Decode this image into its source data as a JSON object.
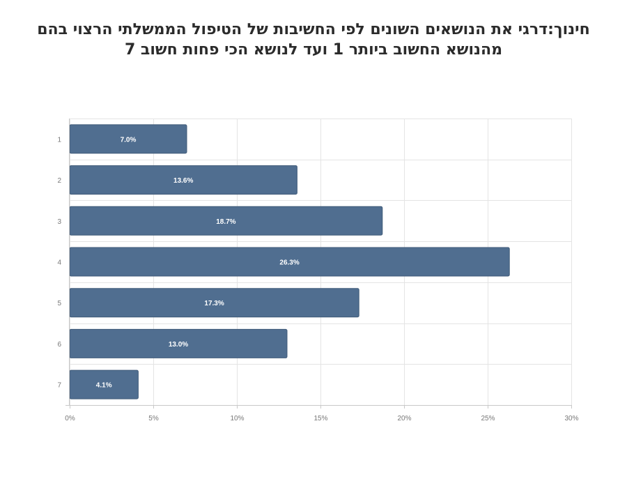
{
  "chart_data": {
    "type": "bar",
    "orientation": "horizontal",
    "title_lines": [
      "חינוך:דרגי את הנושאים השונים לפי החשיבות של הטיפול הממשלתי הרצוי בהם",
      "מהנושא החשוב ביותר 1 ועד לנושא הכי פחות חשוב 7"
    ],
    "categories": [
      "1",
      "2",
      "3",
      "4",
      "5",
      "6",
      "7"
    ],
    "values": [
      7.0,
      13.6,
      18.7,
      26.3,
      17.3,
      13.0,
      4.1
    ],
    "value_labels": [
      "7.0%",
      "13.6%",
      "18.7%",
      "26.3%",
      "17.3%",
      "13.0%",
      "4.1%"
    ],
    "xlim": [
      0,
      30
    ],
    "x_ticks": [
      0,
      5,
      10,
      15,
      20,
      25,
      30
    ],
    "x_tick_labels": [
      "0%",
      "5%",
      "10%",
      "15%",
      "20%",
      "25%",
      "30%"
    ],
    "xlabel": "",
    "ylabel": "",
    "grid": true,
    "legend": "none",
    "colors": {
      "bar": "#506e90",
      "bar_stroke": "#3f5a78",
      "grid": "#e4e4e4",
      "axis": "#c8c8c8",
      "title": "#2b2b2b",
      "tick_text": "#777777",
      "data_label": "#ffffff"
    }
  }
}
